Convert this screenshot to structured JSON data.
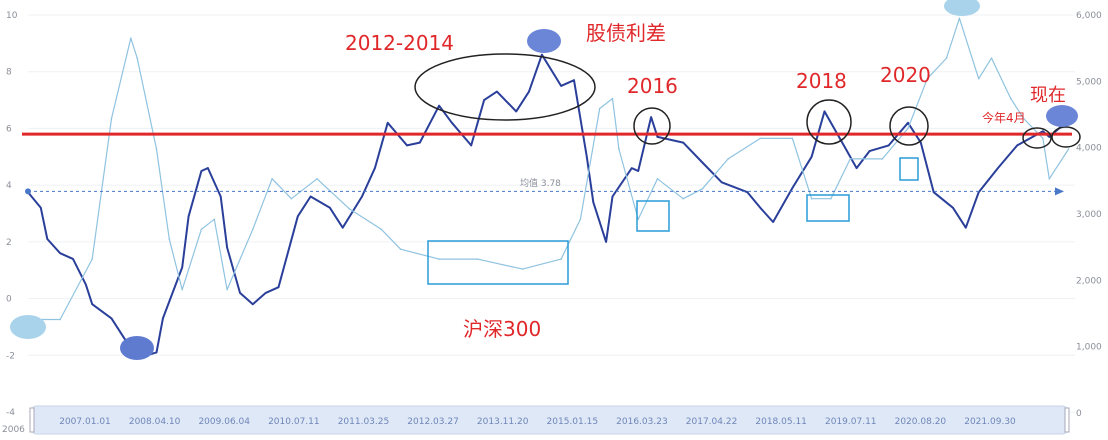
{
  "chart_data": {
    "type": "line",
    "title": "",
    "xlabel": "",
    "ylabel": "",
    "y_left": {
      "ticks": [
        "10",
        "8",
        "6",
        "4",
        "2",
        "0",
        "-2",
        "-4"
      ],
      "range": [
        -4,
        10
      ]
    },
    "y_right": {
      "ticks": [
        "6,000",
        "5,000",
        "4,000",
        "3,000",
        "2,000",
        "1,000",
        "0"
      ],
      "range": [
        0,
        6000
      ]
    },
    "x_range": [
      2006.0,
      2022.3
    ],
    "x_start_label": "2006",
    "datazoom_labels": [
      "2007.01.01",
      "2008.04.10",
      "2009.06.04",
      "2010.07.11",
      "2011.03.25",
      "2012.03.27",
      "2013.11.20",
      "2015.01.15",
      "2016.03.23",
      "2017.04.22",
      "2018.05.11",
      "2019.07.11",
      "2020.08.20",
      "2021.09.30"
    ],
    "grid": true,
    "series": [
      {
        "name": "股债利差",
        "axis": "left",
        "color": "#2a3f9a",
        "x": [
          2006.0,
          2006.2,
          2006.3,
          2006.5,
          2006.7,
          2006.9,
          2007.0,
          2007.3,
          2007.5,
          2007.7,
          2008.0,
          2008.1,
          2008.4,
          2008.5,
          2008.7,
          2008.8,
          2009.0,
          2009.1,
          2009.3,
          2009.5,
          2009.7,
          2009.9,
          2010.2,
          2010.4,
          2010.7,
          2010.9,
          2011.2,
          2011.4,
          2011.6,
          2011.9,
          2012.1,
          2012.4,
          2012.6,
          2012.9,
          2013.1,
          2013.3,
          2013.6,
          2013.8,
          2014.0,
          2014.3,
          2014.5,
          2014.7,
          2014.8,
          2015.0,
          2015.1,
          2015.4,
          2015.5,
          2015.7,
          2015.8,
          2016.2,
          2016.5,
          2016.8,
          2017.2,
          2017.4,
          2017.6,
          2017.9,
          2018.2,
          2018.4,
          2018.7,
          2018.9,
          2019.1,
          2019.4,
          2019.7,
          2019.9,
          2020.1,
          2020.4,
          2020.6,
          2020.8,
          2021.1,
          2021.4,
          2021.8,
          2021.9,
          2022.1,
          2022.2
        ],
        "y": [
          3.75,
          3.2,
          2.1,
          1.6,
          1.4,
          0.5,
          -0.2,
          -0.7,
          -1.4,
          -2.1,
          -1.9,
          -0.7,
          1.1,
          2.9,
          4.5,
          4.6,
          3.6,
          1.8,
          0.2,
          -0.2,
          0.2,
          0.4,
          2.9,
          3.6,
          3.2,
          2.5,
          3.6,
          4.6,
          6.2,
          5.4,
          5.5,
          6.8,
          6.2,
          5.4,
          7.0,
          7.3,
          6.6,
          7.3,
          8.6,
          7.5,
          7.7,
          5.0,
          3.4,
          2.0,
          3.6,
          4.6,
          4.5,
          6.4,
          5.7,
          5.5,
          4.8,
          4.1,
          3.75,
          3.2,
          2.7,
          3.9,
          5.0,
          6.6,
          5.4,
          4.6,
          5.2,
          5.4,
          6.2,
          5.5,
          3.75,
          3.2,
          2.5,
          3.75,
          4.6,
          5.4,
          5.9,
          5.7,
          6.1,
          6.2
        ]
      },
      {
        "name": "沪深300",
        "axis": "right",
        "color": "#8fc3e0",
        "x": [
          2006.0,
          2006.5,
          2007.0,
          2007.3,
          2007.6,
          2007.7,
          2008.0,
          2008.2,
          2008.4,
          2008.7,
          2008.9,
          2009.1,
          2009.5,
          2009.8,
          2010.1,
          2010.5,
          2011.0,
          2011.5,
          2011.8,
          2012.4,
          2013.0,
          2013.7,
          2014.3,
          2014.6,
          2014.9,
          2015.1,
          2015.2,
          2015.5,
          2015.8,
          2016.2,
          2016.5,
          2016.9,
          2017.4,
          2017.9,
          2018.2,
          2018.5,
          2018.8,
          2019.3,
          2019.7,
          2020.0,
          2020.3,
          2020.5,
          2020.8,
          2021.0,
          2021.3,
          2021.5,
          2021.8,
          2021.9,
          2022.2
        ],
        "y": [
          1410,
          1410,
          2320,
          4440,
          5650,
          5350,
          3980,
          2620,
          1860,
          2770,
          2920,
          1860,
          2770,
          3530,
          3230,
          3530,
          3080,
          2770,
          2470,
          2320,
          2320,
          2170,
          2320,
          2920,
          4590,
          4740,
          3980,
          2920,
          3530,
          3230,
          3380,
          3830,
          4140,
          4140,
          3230,
          3230,
          3830,
          3830,
          4290,
          5040,
          5350,
          5950,
          5040,
          5350,
          4740,
          4440,
          4140,
          3530,
          3980
        ]
      }
    ],
    "reference_lines": [
      {
        "label": "均值 3.78",
        "value": 3.78,
        "axis": "left",
        "style": "dashed",
        "color": "#4a78c8"
      },
      {
        "label": "",
        "value": 5.8,
        "axis": "left",
        "style": "solid",
        "color": "#e0282b"
      }
    ],
    "annotations": {
      "period_2012_2014": "2012-2014",
      "spread_label": "股债利差",
      "y2016": "2016",
      "y2018": "2018",
      "y2020": "2020",
      "now": "现在",
      "april": "今年4月",
      "csi300": "沪深300"
    },
    "colors": {
      "highlight": "#e0282b",
      "spread": "#2a3f9a",
      "index": "#8fc3e0",
      "box": "#2a9bd8"
    }
  }
}
